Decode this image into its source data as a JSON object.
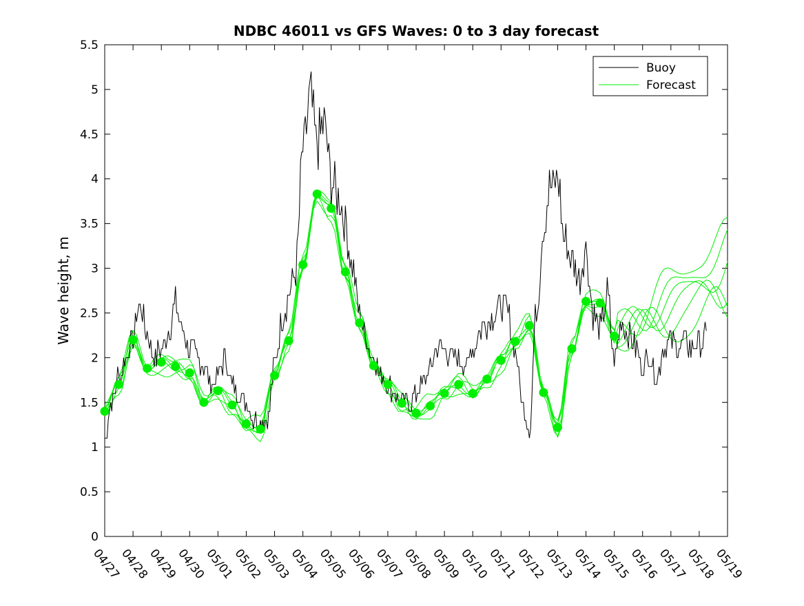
{
  "chart_data": {
    "type": "line",
    "title": "NDBC 46011 vs GFS Waves: 0 to 3 day forecast",
    "xlabel": "",
    "ylabel": "Wave height, m",
    "ylim": [
      0,
      5.5
    ],
    "yticks": [
      "0",
      "0.5",
      "1",
      "1.5",
      "2",
      "2.5",
      "3",
      "3.5",
      "4",
      "4.5",
      "5",
      "5.5"
    ],
    "xticks": [
      "04/27",
      "04/28",
      "04/29",
      "04/30",
      "05/01",
      "05/02",
      "05/03",
      "05/04",
      "05/05",
      "05/06",
      "05/07",
      "05/08",
      "05/09",
      "05/10",
      "05/11",
      "05/12",
      "05/13",
      "05/14",
      "05/15",
      "05/16",
      "05/17",
      "05/18",
      "05/19"
    ],
    "xlim_days": [
      0,
      22
    ],
    "x_unit": "days since 04/27",
    "grid": false,
    "legend_position": "top-right",
    "legend": [
      {
        "label": "Buoy",
        "color": "#000000"
      },
      {
        "label": "Forecast",
        "color": "#00ee00"
      }
    ],
    "colors": {
      "buoy": "#000000",
      "forecast": "#00ee00",
      "markers": "#00ee00"
    },
    "series": [
      {
        "name": "Buoy",
        "x": [
          0,
          0.25,
          0.5,
          0.75,
          1,
          1.2,
          1.5,
          1.75,
          2,
          2.25,
          2.5,
          2.75,
          3,
          3.25,
          3.5,
          3.75,
          4,
          4.25,
          4.5,
          4.75,
          5,
          5.25,
          5.5,
          5.75,
          6,
          6.25,
          6.5,
          6.75,
          7,
          7.25,
          7.5,
          7.75,
          8,
          8.25,
          8.5,
          8.75,
          9,
          9.25,
          9.5,
          9.75,
          10,
          10.25,
          10.5,
          10.75,
          11,
          11.25,
          11.5,
          11.75,
          12,
          12.25,
          12.5,
          12.75,
          13,
          13.25,
          13.5,
          13.75,
          14,
          14.25,
          14.5,
          14.75,
          15,
          15.25,
          15.5,
          15.75,
          16,
          16.25,
          16.5,
          16.75,
          17,
          17.25,
          17.5,
          17.75,
          18,
          18.25,
          18.5,
          18.75,
          19,
          19.25,
          19.5,
          19.75,
          20,
          20.25,
          20.5,
          20.75,
          21,
          21.25
        ],
        "y": [
          1.1,
          1.5,
          1.8,
          2.0,
          2.2,
          2.6,
          2.3,
          2.0,
          2.1,
          2.3,
          2.6,
          2.3,
          2.1,
          2.0,
          1.9,
          1.7,
          1.8,
          2.0,
          1.7,
          1.6,
          1.5,
          1.3,
          1.3,
          1.3,
          1.9,
          2.4,
          2.7,
          3.0,
          4.3,
          4.9,
          4.4,
          4.6,
          4.0,
          3.8,
          3.5,
          3.0,
          2.5,
          2.2,
          2.0,
          1.8,
          1.7,
          1.6,
          1.5,
          1.5,
          1.6,
          1.7,
          1.9,
          2.1,
          2.1,
          2.0,
          2.0,
          1.9,
          2.1,
          2.3,
          2.4,
          2.5,
          2.6,
          2.5,
          2.1,
          1.5,
          1.2,
          2.5,
          3.5,
          3.9,
          4.0,
          3.3,
          3.1,
          2.9,
          3.2,
          2.5,
          2.3,
          2.7,
          2.0,
          2.4,
          2.3,
          2.1,
          1.9,
          2.0,
          1.8,
          2.1,
          2.2,
          2.1,
          2.2,
          2.1,
          2.2,
          2.2
        ]
      },
      {
        "name": "Forecast",
        "x": [
          0,
          0.5,
          1,
          1.5,
          2,
          2.5,
          3,
          3.5,
          4,
          4.5,
          5,
          5.5,
          6,
          6.5,
          7,
          7.5,
          8,
          8.5,
          9,
          9.5,
          10,
          10.5,
          11,
          11.5,
          12,
          12.5,
          13,
          13.5,
          14,
          14.5,
          15,
          15.5,
          16,
          16.5,
          17,
          17.5,
          18
        ],
        "y": [
          1.4,
          1.7,
          2.2,
          1.88,
          1.95,
          1.9,
          1.83,
          1.5,
          1.63,
          1.47,
          1.26,
          1.2,
          1.8,
          2.19,
          3.04,
          3.83,
          3.67,
          2.96,
          2.39,
          1.91,
          1.7,
          1.49,
          1.38,
          1.46,
          1.6,
          1.7,
          1.6,
          1.76,
          1.97,
          2.18,
          2.36,
          1.61,
          1.22,
          2.1,
          2.63,
          2.61,
          2.24
        ]
      }
    ]
  }
}
